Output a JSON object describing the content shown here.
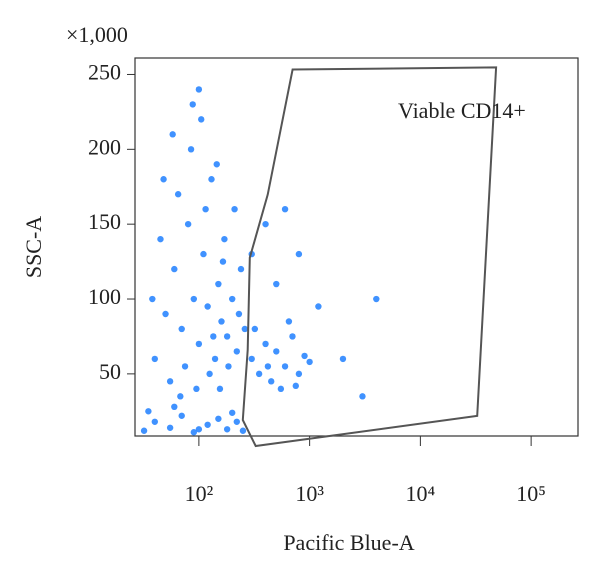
{
  "chart_data": {
    "type": "scatter",
    "multiplier_label": "×1,000",
    "xlabel": "Pacific Blue-A",
    "ylabel": "SSC-A",
    "xscale": "log",
    "xlim": [
      26.5,
      265000
    ],
    "ylim": [
      8.5,
      261
    ],
    "xticks": [
      {
        "value": 100,
        "label": "10²"
      },
      {
        "value": 1000,
        "label": "10³"
      },
      {
        "value": 10000,
        "label": "10⁴"
      },
      {
        "value": 100000,
        "label": "10⁵"
      }
    ],
    "yticks": [
      50,
      100,
      150,
      200,
      250
    ],
    "series": [
      {
        "color": "#1e7fff",
        "x": [
          40,
          50,
          60,
          70,
          80,
          90,
          100,
          110,
          120,
          130,
          140,
          150,
          160,
          170,
          180,
          200,
          220,
          240,
          45,
          55,
          65,
          75,
          85,
          95,
          105,
          115,
          125,
          135,
          145,
          155,
          165,
          185,
          210,
          230,
          38,
          48,
          58,
          68,
          88,
          100,
          260,
          32,
          40,
          55,
          70,
          90,
          120,
          150,
          180,
          220,
          250,
          35,
          60,
          100,
          200,
          300,
          350,
          400,
          450,
          500,
          600,
          700,
          800,
          900,
          1000,
          320,
          550,
          650,
          750,
          420,
          300,
          400,
          500,
          600,
          800,
          4000,
          3000,
          2000,
          1200
        ],
        "values": [
          60,
          90,
          120,
          80,
          150,
          100,
          70,
          130,
          95,
          180,
          60,
          110,
          85,
          140,
          75,
          100,
          65,
          120,
          140,
          45,
          170,
          55,
          200,
          40,
          220,
          160,
          50,
          75,
          190,
          40,
          125,
          55,
          160,
          90,
          100,
          180,
          210,
          35,
          230,
          240,
          80,
          12,
          18,
          14,
          22,
          11,
          16,
          20,
          13,
          18,
          12,
          25,
          28,
          13,
          24,
          60,
          50,
          70,
          45,
          65,
          55,
          75,
          50,
          62,
          58,
          80,
          40,
          85,
          42,
          55,
          130,
          150,
          110,
          160,
          130,
          100,
          35,
          60,
          95
        ]
      }
    ],
    "gate": {
      "name": "Viable CD14+",
      "color": "#555555",
      "x": [
        702,
        48300,
        32600,
        326,
        249,
        276,
        288,
        418
      ],
      "y": [
        253.3,
        254.7,
        21.9,
        1.8,
        19.2,
        66,
        127.6,
        169.7
      ]
    }
  }
}
